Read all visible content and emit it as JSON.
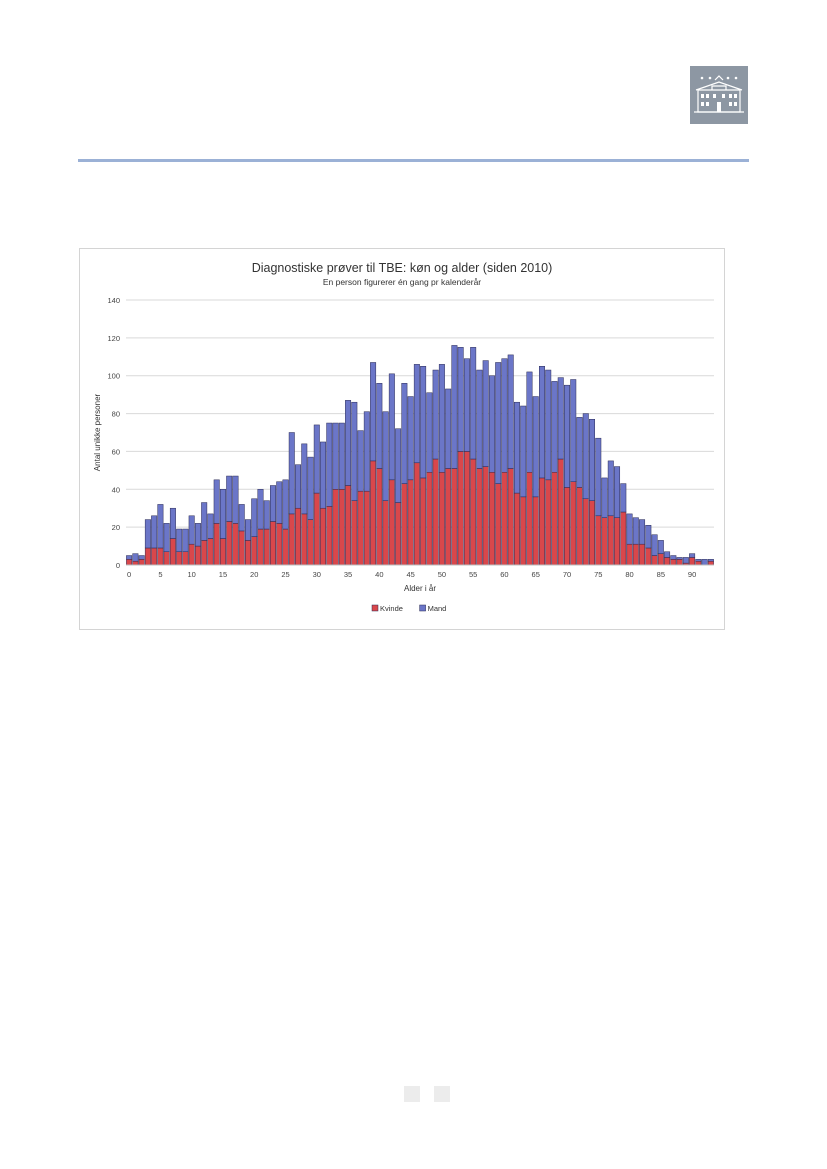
{
  "page": {
    "logo_icon": "building-icon",
    "rule_color": "#9bb1d6",
    "page_number_placeholders": 2
  },
  "chart_data": {
    "type": "bar",
    "stacked": true,
    "title": "Diagnostiske prøver til TBE: køn og alder (siden 2010)",
    "subtitle": "En person figurerer én gang pr kalenderår",
    "xlabel": "Alder i år",
    "ylabel": "Antal unikke personer",
    "ylim": [
      0,
      140
    ],
    "yticks": [
      0,
      20,
      40,
      60,
      80,
      100,
      120,
      140
    ],
    "xticks": [
      0,
      5,
      10,
      15,
      20,
      25,
      30,
      35,
      40,
      45,
      50,
      55,
      60,
      65,
      70,
      75,
      80,
      85,
      90
    ],
    "grid": true,
    "legend_position": "bottom",
    "x": [
      0,
      1,
      2,
      3,
      4,
      5,
      6,
      7,
      8,
      9,
      10,
      11,
      12,
      13,
      14,
      15,
      16,
      17,
      18,
      19,
      20,
      21,
      22,
      23,
      24,
      25,
      26,
      27,
      28,
      29,
      30,
      31,
      32,
      33,
      34,
      35,
      36,
      37,
      38,
      39,
      40,
      41,
      42,
      43,
      44,
      45,
      46,
      47,
      48,
      49,
      50,
      51,
      52,
      53,
      54,
      55,
      56,
      57,
      58,
      59,
      60,
      61,
      62,
      63,
      64,
      65,
      66,
      67,
      68,
      69,
      70,
      71,
      72,
      73,
      74,
      75,
      76,
      77,
      78,
      79,
      80,
      81,
      82,
      83,
      84,
      85,
      86,
      87,
      88,
      89,
      90,
      91,
      92,
      93
    ],
    "series": [
      {
        "name": "Kvinde",
        "color": "#d9474b",
        "values": [
          3,
          2,
          3,
          9,
          9,
          9,
          7,
          14,
          7,
          7,
          11,
          10,
          13,
          14,
          22,
          14,
          23,
          22,
          18,
          13,
          15,
          19,
          19,
          23,
          22,
          19,
          27,
          30,
          27,
          24,
          38,
          30,
          31,
          40,
          40,
          42,
          34,
          39,
          39,
          55,
          51,
          34,
          45,
          33,
          43,
          45,
          54,
          46,
          49,
          56,
          49,
          51,
          51,
          60,
          60,
          56,
          51,
          52,
          49,
          43,
          49,
          51,
          38,
          36,
          49,
          36,
          46,
          45,
          49,
          56,
          41,
          44,
          41,
          35,
          34,
          26,
          25,
          26,
          25,
          28,
          11,
          11,
          11,
          9,
          5,
          6,
          4,
          3,
          3,
          1,
          4,
          2,
          0,
          2
        ]
      },
      {
        "name": "Mand",
        "color": "#6b76c8",
        "values": [
          2,
          4,
          2,
          15,
          17,
          23,
          15,
          16,
          12,
          12,
          15,
          12,
          20,
          13,
          23,
          26,
          24,
          25,
          14,
          11,
          20,
          21,
          15,
          19,
          22,
          26,
          43,
          23,
          37,
          33,
          36,
          35,
          44,
          35,
          35,
          45,
          52,
          32,
          42,
          52,
          45,
          47,
          56,
          39,
          53,
          44,
          52,
          59,
          42,
          47,
          57,
          42,
          65,
          55,
          49,
          59,
          52,
          56,
          51,
          64,
          60,
          60,
          48,
          48,
          53,
          53,
          59,
          58,
          48,
          43,
          54,
          54,
          37,
          45,
          43,
          41,
          21,
          29,
          27,
          15,
          16,
          14,
          13,
          12,
          11,
          7,
          3,
          2,
          1,
          3,
          2,
          1,
          3,
          1
        ]
      }
    ]
  }
}
